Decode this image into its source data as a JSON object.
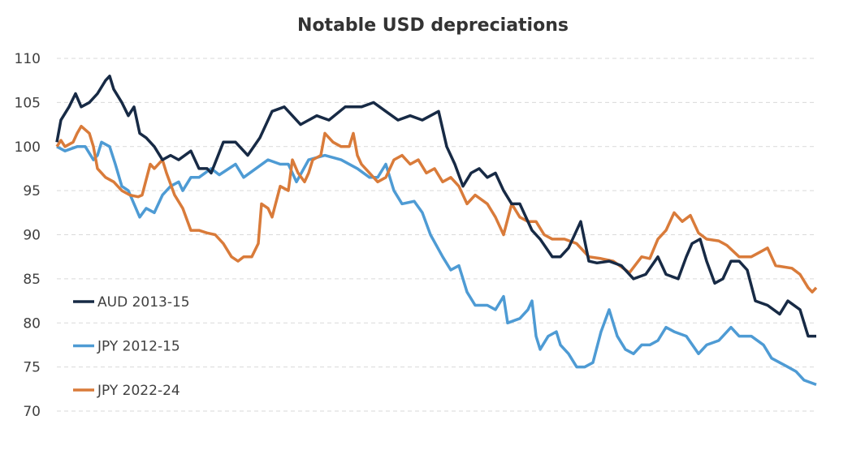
{
  "chart_data": {
    "type": "line",
    "title": "Notable USD depreciations",
    "xlabel": "",
    "ylabel": "",
    "xunit": "days from start (approx.)",
    "xlim": [
      0,
      935
    ],
    "ylim": [
      70,
      110
    ],
    "yticks": [
      110,
      105,
      100,
      95,
      90,
      85,
      80,
      75,
      70
    ],
    "grid": true,
    "legend_position": "bottom-left",
    "series": [
      {
        "name": "AUD 2013-15",
        "color": "#172A45",
        "points": [
          [
            0,
            100.5
          ],
          [
            5,
            103
          ],
          [
            15,
            104.5
          ],
          [
            23,
            106
          ],
          [
            30,
            104.5
          ],
          [
            40,
            105
          ],
          [
            50,
            106
          ],
          [
            60,
            107.5
          ],
          [
            65,
            108
          ],
          [
            70,
            106.5
          ],
          [
            80,
            105
          ],
          [
            88,
            103.5
          ],
          [
            95,
            104.5
          ],
          [
            102,
            101.5
          ],
          [
            110,
            101
          ],
          [
            120,
            100
          ],
          [
            130,
            98.5
          ],
          [
            140,
            99
          ],
          [
            150,
            98.5
          ],
          [
            165,
            99.5
          ],
          [
            175,
            97.5
          ],
          [
            185,
            97.5
          ],
          [
            190,
            97
          ],
          [
            205,
            100.5
          ],
          [
            220,
            100.5
          ],
          [
            235,
            99
          ],
          [
            250,
            101
          ],
          [
            265,
            104
          ],
          [
            280,
            104.5
          ],
          [
            300,
            102.5
          ],
          [
            320,
            103.5
          ],
          [
            335,
            103
          ],
          [
            355,
            104.5
          ],
          [
            375,
            104.5
          ],
          [
            390,
            105
          ],
          [
            405,
            104
          ],
          [
            420,
            103
          ],
          [
            435,
            103.5
          ],
          [
            450,
            103
          ],
          [
            470,
            104
          ],
          [
            480,
            100
          ],
          [
            490,
            98
          ],
          [
            500,
            95.5
          ],
          [
            510,
            97
          ],
          [
            520,
            97.5
          ],
          [
            530,
            96.5
          ],
          [
            540,
            97
          ],
          [
            550,
            95
          ],
          [
            560,
            93.5
          ],
          [
            570,
            93.5
          ],
          [
            585,
            90.5
          ],
          [
            595,
            89.5
          ],
          [
            610,
            87.5
          ],
          [
            620,
            87.5
          ],
          [
            630,
            88.5
          ],
          [
            645,
            91.5
          ],
          [
            655,
            87
          ],
          [
            665,
            86.8
          ],
          [
            680,
            87
          ],
          [
            695,
            86.5
          ],
          [
            710,
            85
          ],
          [
            725,
            85.5
          ],
          [
            740,
            87.5
          ],
          [
            750,
            85.5
          ],
          [
            765,
            85
          ],
          [
            775,
            87.5
          ],
          [
            782,
            89
          ],
          [
            792,
            89.5
          ],
          [
            800,
            87
          ],
          [
            810,
            84.5
          ],
          [
            820,
            85
          ],
          [
            830,
            87
          ],
          [
            840,
            87
          ],
          [
            850,
            86
          ],
          [
            860,
            82.5
          ],
          [
            875,
            82
          ],
          [
            890,
            81
          ],
          [
            900,
            82.5
          ],
          [
            915,
            81.5
          ],
          [
            925,
            78.5
          ],
          [
            935,
            78.5
          ]
        ]
      },
      {
        "name": "JPY 2012-15",
        "color": "#4E9BD4",
        "points": [
          [
            0,
            100
          ],
          [
            10,
            99.5
          ],
          [
            25,
            100
          ],
          [
            35,
            100
          ],
          [
            45,
            98.5
          ],
          [
            50,
            99
          ],
          [
            55,
            100.5
          ],
          [
            65,
            100
          ],
          [
            72,
            98
          ],
          [
            80,
            95.5
          ],
          [
            88,
            95
          ],
          [
            95,
            93.5
          ],
          [
            102,
            92
          ],
          [
            110,
            93
          ],
          [
            120,
            92.5
          ],
          [
            130,
            94.5
          ],
          [
            140,
            95.5
          ],
          [
            150,
            96
          ],
          [
            155,
            95
          ],
          [
            165,
            96.5
          ],
          [
            175,
            96.5
          ],
          [
            190,
            97.5
          ],
          [
            200,
            96.8
          ],
          [
            220,
            98
          ],
          [
            230,
            96.5
          ],
          [
            245,
            97.5
          ],
          [
            260,
            98.5
          ],
          [
            275,
            98
          ],
          [
            285,
            98
          ],
          [
            295,
            96
          ],
          [
            310,
            98.5
          ],
          [
            330,
            99
          ],
          [
            350,
            98.5
          ],
          [
            370,
            97.5
          ],
          [
            385,
            96.5
          ],
          [
            395,
            96.5
          ],
          [
            405,
            98
          ],
          [
            415,
            95
          ],
          [
            425,
            93.5
          ],
          [
            440,
            93.8
          ],
          [
            450,
            92.5
          ],
          [
            460,
            90
          ],
          [
            475,
            87.5
          ],
          [
            485,
            86
          ],
          [
            495,
            86.5
          ],
          [
            505,
            83.5
          ],
          [
            515,
            82
          ],
          [
            530,
            82
          ],
          [
            540,
            81.5
          ],
          [
            550,
            83
          ],
          [
            555,
            80
          ],
          [
            570,
            80.5
          ],
          [
            580,
            81.5
          ],
          [
            585,
            82.5
          ],
          [
            590,
            78.5
          ],
          [
            595,
            77
          ],
          [
            605,
            78.5
          ],
          [
            615,
            79
          ],
          [
            620,
            77.5
          ],
          [
            630,
            76.5
          ],
          [
            640,
            75
          ],
          [
            650,
            75
          ],
          [
            660,
            75.5
          ],
          [
            670,
            79
          ],
          [
            680,
            81.5
          ],
          [
            690,
            78.5
          ],
          [
            700,
            77
          ],
          [
            710,
            76.5
          ],
          [
            720,
            77.5
          ],
          [
            730,
            77.5
          ],
          [
            740,
            78
          ],
          [
            750,
            79.5
          ],
          [
            760,
            79
          ],
          [
            775,
            78.5
          ],
          [
            790,
            76.5
          ],
          [
            800,
            77.5
          ],
          [
            815,
            78
          ],
          [
            830,
            79.5
          ],
          [
            840,
            78.5
          ],
          [
            855,
            78.5
          ],
          [
            870,
            77.5
          ],
          [
            880,
            76
          ],
          [
            890,
            75.5
          ],
          [
            900,
            75
          ],
          [
            910,
            74.5
          ],
          [
            920,
            73.5
          ],
          [
            935,
            73
          ]
        ]
      },
      {
        "name": "JPY 2022-24",
        "color": "#D97B3A",
        "points": [
          [
            0,
            100
          ],
          [
            5,
            100.7
          ],
          [
            10,
            100
          ],
          [
            20,
            100.5
          ],
          [
            25,
            101.5
          ],
          [
            30,
            102.3
          ],
          [
            40,
            101.5
          ],
          [
            45,
            100
          ],
          [
            50,
            97.5
          ],
          [
            60,
            96.5
          ],
          [
            70,
            96
          ],
          [
            80,
            95
          ],
          [
            90,
            94.5
          ],
          [
            100,
            94.3
          ],
          [
            105,
            94.5
          ],
          [
            115,
            98
          ],
          [
            120,
            97.5
          ],
          [
            130,
            98.5
          ],
          [
            135,
            97
          ],
          [
            145,
            94.5
          ],
          [
            155,
            93
          ],
          [
            165,
            90.5
          ],
          [
            175,
            90.5
          ],
          [
            185,
            90.2
          ],
          [
            195,
            90
          ],
          [
            205,
            89
          ],
          [
            215,
            87.5
          ],
          [
            223,
            87
          ],
          [
            230,
            87.5
          ],
          [
            240,
            87.5
          ],
          [
            248,
            89
          ],
          [
            252,
            93.5
          ],
          [
            260,
            93
          ],
          [
            265,
            92
          ],
          [
            275,
            95.5
          ],
          [
            285,
            95
          ],
          [
            290,
            98.5
          ],
          [
            297,
            97
          ],
          [
            305,
            96
          ],
          [
            310,
            97
          ],
          [
            315,
            98.5
          ],
          [
            325,
            99
          ],
          [
            330,
            101.5
          ],
          [
            340,
            100.5
          ],
          [
            350,
            100
          ],
          [
            360,
            100
          ],
          [
            365,
            101.5
          ],
          [
            370,
            99
          ],
          [
            375,
            98
          ],
          [
            385,
            97
          ],
          [
            395,
            96
          ],
          [
            405,
            96.5
          ],
          [
            415,
            98.5
          ],
          [
            425,
            99
          ],
          [
            435,
            98
          ],
          [
            445,
            98.5
          ],
          [
            455,
            97
          ],
          [
            465,
            97.5
          ],
          [
            475,
            96
          ],
          [
            485,
            96.5
          ],
          [
            495,
            95.5
          ],
          [
            505,
            93.5
          ],
          [
            515,
            94.5
          ],
          [
            530,
            93.5
          ],
          [
            540,
            92
          ],
          [
            550,
            90
          ],
          [
            560,
            93.5
          ],
          [
            570,
            92
          ],
          [
            580,
            91.5
          ],
          [
            590,
            91.5
          ],
          [
            600,
            90
          ],
          [
            610,
            89.5
          ],
          [
            625,
            89.5
          ],
          [
            640,
            89
          ],
          [
            655,
            87.5
          ],
          [
            670,
            87.3
          ],
          [
            685,
            87
          ],
          [
            705,
            85.7
          ],
          [
            720,
            87.5
          ],
          [
            730,
            87.3
          ],
          [
            740,
            89.5
          ],
          [
            750,
            90.5
          ],
          [
            760,
            92.5
          ],
          [
            770,
            91.5
          ],
          [
            780,
            92.2
          ],
          [
            790,
            90.2
          ],
          [
            800,
            89.5
          ],
          [
            815,
            89.3
          ],
          [
            825,
            88.8
          ],
          [
            840,
            87.5
          ],
          [
            855,
            87.5
          ],
          [
            865,
            88
          ],
          [
            875,
            88.5
          ],
          [
            885,
            86.5
          ],
          [
            905,
            86.2
          ],
          [
            915,
            85.5
          ],
          [
            925,
            84
          ],
          [
            930,
            83.5
          ],
          [
            935,
            84
          ]
        ]
      }
    ]
  }
}
